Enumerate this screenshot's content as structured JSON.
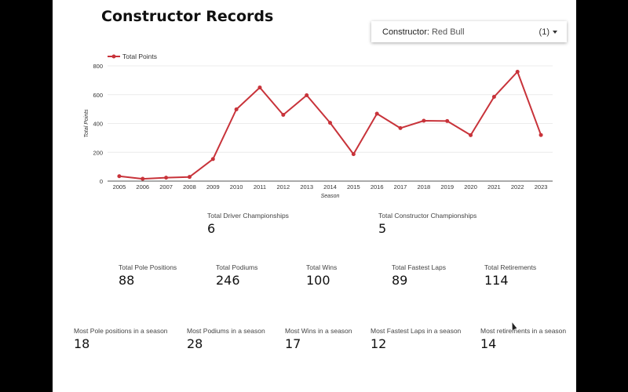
{
  "title": "Constructor Records",
  "filter": {
    "label": "Constructor",
    "value": "Red Bull",
    "count": "(1)",
    "icon": "chevron-down-icon"
  },
  "chart_data": {
    "type": "line",
    "x": [
      "2005",
      "2006",
      "2007",
      "2008",
      "2009",
      "2010",
      "2011",
      "2012",
      "2013",
      "2014",
      "2015",
      "2016",
      "2017",
      "2018",
      "2019",
      "2020",
      "2021",
      "2022",
      "2023"
    ],
    "series": [
      {
        "name": "Total Points",
        "color": "#c8333a",
        "values": [
          34,
          16,
          24,
          29,
          153,
          498,
          650,
          460,
          596,
          405,
          187,
          468,
          368,
          419,
          417,
          319,
          585,
          759,
          320
        ]
      }
    ],
    "xlabel": "Season",
    "ylabel": "Total Points",
    "ylim": [
      0,
      800
    ],
    "yticks": [
      0,
      200,
      400,
      600,
      800
    ],
    "grid": true,
    "legend": "top-left"
  },
  "stats_row1": [
    {
      "label": "Total Driver Championships",
      "value": "6"
    },
    {
      "label": "Total Constructor Championships",
      "value": "5"
    }
  ],
  "stats_row2": [
    {
      "label": "Total Pole Positions",
      "value": "88"
    },
    {
      "label": "Total Podiums",
      "value": "246"
    },
    {
      "label": "Total Wins",
      "value": "100"
    },
    {
      "label": "Total Fastest Laps",
      "value": "89"
    },
    {
      "label": "Total Retirements",
      "value": "114"
    }
  ],
  "stats_row3": [
    {
      "label": "Most Pole positions in a season",
      "value": "18"
    },
    {
      "label": "Most Podiums in a season",
      "value": "28"
    },
    {
      "label": "Most Wins in a season",
      "value": "17"
    },
    {
      "label": "Most Fastest Laps in a season",
      "value": "12"
    },
    {
      "label": "Most retirements in a season",
      "value": "14"
    }
  ]
}
